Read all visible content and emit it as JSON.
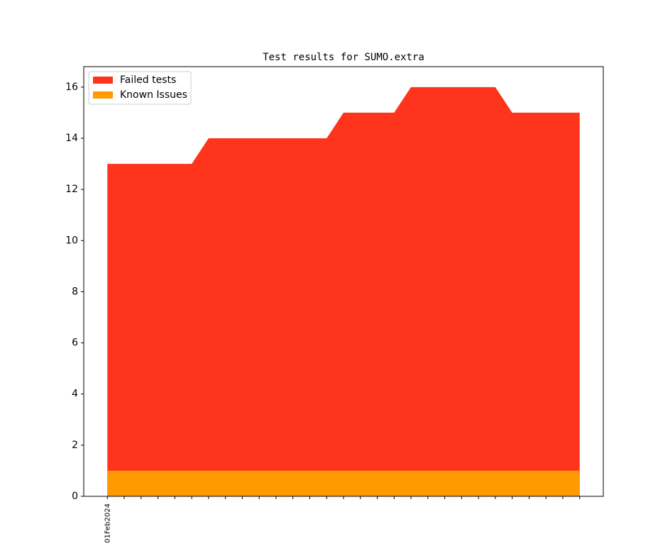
{
  "chart_data": {
    "type": "area",
    "title": "Test results for SUMO.extra",
    "categories": [
      "01Feb2024",
      null,
      null,
      null,
      null,
      null,
      null,
      null,
      null,
      null,
      null,
      null,
      null,
      null,
      null,
      null,
      null,
      null,
      null,
      null,
      null,
      null,
      null,
      null,
      null,
      null,
      null,
      null,
      null
    ],
    "series": [
      {
        "name": "Failed tests",
        "color": "#ff341c",
        "values": [
          13,
          13,
          13,
          13,
          13,
          13,
          14,
          14,
          14,
          14,
          14,
          14,
          14,
          14,
          15,
          15,
          15,
          15,
          16,
          16,
          16,
          16,
          16,
          16,
          15,
          15,
          15,
          15,
          15
        ]
      },
      {
        "name": "Known Issues",
        "color": "#ff9a00",
        "values": [
          1,
          1,
          1,
          1,
          1,
          1,
          1,
          1,
          1,
          1,
          1,
          1,
          1,
          1,
          1,
          1,
          1,
          1,
          1,
          1,
          1,
          1,
          1,
          1,
          1,
          1,
          1,
          1,
          1
        ]
      }
    ],
    "ylim": [
      0,
      16.8
    ],
    "yticks": [
      0,
      2,
      4,
      6,
      8,
      10,
      12,
      14,
      16
    ],
    "legend": "upper left"
  }
}
